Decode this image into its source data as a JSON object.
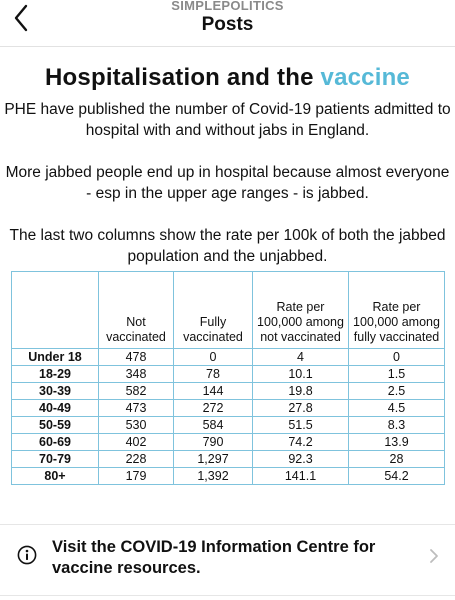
{
  "header": {
    "back_icon": "chevron-left-icon",
    "eyebrow": "SIMPLEPOLITICS",
    "title": "Posts"
  },
  "post": {
    "title_main": "Hospitalisation and the ",
    "title_accent": "vaccine",
    "accent_color": "#56b9d7",
    "paragraph1": "PHE have published the number of Covid-19 patients admitted to hospital with and without jabs in England.",
    "paragraph2": "More jabbed people end up in hospital because almost everyone - esp in the upper age ranges - is jabbed.",
    "paragraph3": "The last two columns show the rate per 100k of both the jabbed population and the unjabbed."
  },
  "table": {
    "headers": [
      "",
      "Not vaccinated",
      "Fully vaccinated",
      "Rate per 100,000 among not vaccinated",
      "Rate per 100,000 among fully vaccinated"
    ],
    "rows": [
      [
        "Under 18",
        "478",
        "0",
        "4",
        "0"
      ],
      [
        "18-29",
        "348",
        "78",
        "10.1",
        "1.5"
      ],
      [
        "30-39",
        "582",
        "144",
        "19.8",
        "2.5"
      ],
      [
        "40-49",
        "473",
        "272",
        "27.8",
        "4.5"
      ],
      [
        "50-59",
        "530",
        "584",
        "51.5",
        "8.3"
      ],
      [
        "60-69",
        "402",
        "790",
        "74.2",
        "13.9"
      ],
      [
        "70-79",
        "228",
        "1,297",
        "92.3",
        "28"
      ],
      [
        "80+",
        "179",
        "1,392",
        "141.1",
        "54.2"
      ]
    ],
    "border_color": "#7fc3dd"
  },
  "info_banner": {
    "icon": "info-circle-icon",
    "text": "Visit the COVID-19 Information Centre for vaccine resources.",
    "chevron_icon": "chevron-right-icon"
  }
}
